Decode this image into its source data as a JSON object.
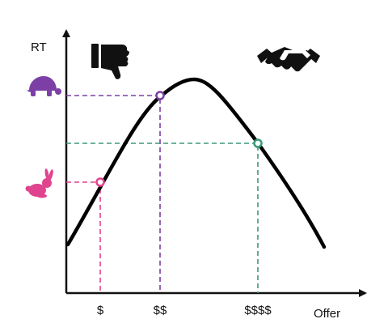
{
  "axes": {
    "y_label": "RT",
    "x_label": "Offer"
  },
  "ticks": [
    "$",
    "$$",
    "$$$$"
  ],
  "icons": {
    "top_left": "thumbs-down-icon",
    "top_right": "handshake-icon",
    "y_high": "turtle-icon",
    "y_low": "rabbit-icon"
  },
  "colors": {
    "curve": "#000000",
    "pink": "#e0448f",
    "purple": "#7b3fa6",
    "green": "#3b9a78"
  },
  "chart_data": {
    "type": "line",
    "xlabel": "Offer",
    "ylabel": "RT",
    "categories": [
      "$",
      "$$",
      "$$$$"
    ],
    "series": [
      {
        "x": [
          "$",
          "$$",
          "$$$$"
        ],
        "marked_points": true
      }
    ],
    "shape": "inverted-U",
    "grid": false
  }
}
